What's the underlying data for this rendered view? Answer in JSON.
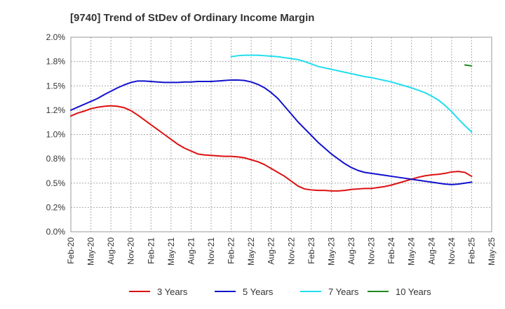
{
  "chart_data": {
    "type": "line",
    "title": "[9740]  Trend of StDev of Ordinary Income Margin",
    "xlabel": "",
    "ylabel": "",
    "x_ticks": [
      "Feb-20",
      "May-20",
      "Aug-20",
      "Nov-20",
      "Feb-21",
      "May-21",
      "Aug-21",
      "Nov-21",
      "Feb-22",
      "May-22",
      "Aug-22",
      "Nov-22",
      "Feb-23",
      "May-23",
      "Aug-23",
      "Nov-23",
      "Feb-24",
      "May-24",
      "Aug-24",
      "Nov-24",
      "Feb-25",
      "May-25"
    ],
    "y_ticks": [
      "0.0%",
      "0.2%",
      "0.5%",
      "0.8%",
      "1.0%",
      "1.2%",
      "1.5%",
      "1.8%",
      "2.0%"
    ],
    "ylim": [
      0,
      2.0
    ],
    "grid": true,
    "legend_position": "bottom",
    "series": [
      {
        "name": "3 Years",
        "color": "#dd1111",
        "x": [
          "Feb-20",
          "Mar-20",
          "Apr-20",
          "May-20",
          "Jun-20",
          "Jul-20",
          "Aug-20",
          "Sep-20",
          "Oct-20",
          "Nov-20",
          "Dec-20",
          "Jan-21",
          "Feb-21",
          "Mar-21",
          "Apr-21",
          "May-21",
          "Jun-21",
          "Jul-21",
          "Aug-21",
          "Sep-21",
          "Oct-21",
          "Nov-21",
          "Dec-21",
          "Jan-22",
          "Feb-22",
          "Mar-22",
          "Apr-22",
          "May-22",
          "Jun-22",
          "Jul-22",
          "Aug-22",
          "Sep-22",
          "Oct-22",
          "Nov-22",
          "Dec-22",
          "Jan-23",
          "Feb-23",
          "Mar-23",
          "Apr-23",
          "May-23",
          "Jun-23",
          "Jul-23",
          "Aug-23",
          "Sep-23",
          "Oct-23",
          "Nov-23",
          "Dec-23",
          "Jan-24",
          "Feb-24",
          "Mar-24",
          "Apr-24",
          "May-24",
          "Jun-24",
          "Jul-24",
          "Aug-24",
          "Sep-24",
          "Oct-24",
          "Nov-24",
          "Dec-24",
          "Jan-25",
          "Feb-25"
        ],
        "values": [
          1.19,
          1.22,
          1.24,
          1.265,
          1.28,
          1.29,
          1.295,
          1.29,
          1.275,
          1.245,
          1.2,
          1.15,
          1.1,
          1.05,
          1.0,
          0.95,
          0.9,
          0.86,
          0.83,
          0.8,
          0.79,
          0.785,
          0.78,
          0.775,
          0.775,
          0.77,
          0.76,
          0.74,
          0.72,
          0.69,
          0.65,
          0.61,
          0.57,
          0.52,
          0.47,
          0.44,
          0.43,
          0.425,
          0.425,
          0.42,
          0.42,
          0.425,
          0.435,
          0.44,
          0.445,
          0.445,
          0.455,
          0.465,
          0.48,
          0.5,
          0.52,
          0.54,
          0.56,
          0.575,
          0.585,
          0.59,
          0.6,
          0.615,
          0.62,
          0.61,
          0.57
        ]
      },
      {
        "name": "5 Years",
        "color": "#1111cc",
        "x": [
          "Feb-20",
          "Mar-20",
          "Apr-20",
          "May-20",
          "Jun-20",
          "Jul-20",
          "Aug-20",
          "Sep-20",
          "Oct-20",
          "Nov-20",
          "Dec-20",
          "Jan-21",
          "Feb-21",
          "Mar-21",
          "Apr-21",
          "May-21",
          "Jun-21",
          "Jul-21",
          "Aug-21",
          "Sep-21",
          "Oct-21",
          "Nov-21",
          "Dec-21",
          "Jan-22",
          "Feb-22",
          "Mar-22",
          "Apr-22",
          "May-22",
          "Jun-22",
          "Jul-22",
          "Aug-22",
          "Sep-22",
          "Oct-22",
          "Nov-22",
          "Dec-22",
          "Jan-23",
          "Feb-23",
          "Mar-23",
          "Apr-23",
          "May-23",
          "Jun-23",
          "Jul-23",
          "Aug-23",
          "Sep-23",
          "Oct-23",
          "Nov-23",
          "Dec-23",
          "Jan-24",
          "Feb-24",
          "Mar-24",
          "Apr-24",
          "May-24",
          "Jun-24",
          "Jul-24",
          "Aug-24",
          "Sep-24",
          "Oct-24",
          "Nov-24",
          "Dec-24",
          "Jan-25",
          "Feb-25"
        ],
        "values": [
          1.25,
          1.28,
          1.31,
          1.34,
          1.37,
          1.41,
          1.445,
          1.48,
          1.51,
          1.535,
          1.55,
          1.55,
          1.545,
          1.54,
          1.535,
          1.535,
          1.535,
          1.54,
          1.54,
          1.545,
          1.545,
          1.545,
          1.55,
          1.555,
          1.56,
          1.56,
          1.555,
          1.54,
          1.515,
          1.48,
          1.43,
          1.37,
          1.29,
          1.21,
          1.13,
          1.06,
          0.99,
          0.92,
          0.86,
          0.8,
          0.75,
          0.7,
          0.66,
          0.63,
          0.61,
          0.6,
          0.59,
          0.58,
          0.57,
          0.56,
          0.55,
          0.54,
          0.53,
          0.52,
          0.51,
          0.5,
          0.49,
          0.485,
          0.49,
          0.5,
          0.51
        ]
      },
      {
        "name": "7 Years",
        "color": "#22ddee",
        "x": [
          "Feb-22",
          "Mar-22",
          "Apr-22",
          "May-22",
          "Jun-22",
          "Jul-22",
          "Aug-22",
          "Sep-22",
          "Oct-22",
          "Nov-22",
          "Dec-22",
          "Jan-23",
          "Feb-23",
          "Mar-23",
          "Apr-23",
          "May-23",
          "Jun-23",
          "Jul-23",
          "Aug-23",
          "Sep-23",
          "Oct-23",
          "Nov-23",
          "Dec-23",
          "Jan-24",
          "Feb-24",
          "Mar-24",
          "Apr-24",
          "May-24",
          "Jun-24",
          "Jul-24",
          "Aug-24",
          "Sep-24",
          "Oct-24",
          "Nov-24",
          "Dec-24",
          "Jan-25",
          "Feb-25"
        ],
        "values": [
          1.8,
          1.81,
          1.815,
          1.815,
          1.815,
          1.81,
          1.805,
          1.8,
          1.79,
          1.78,
          1.77,
          1.75,
          1.725,
          1.7,
          1.685,
          1.67,
          1.655,
          1.64,
          1.625,
          1.61,
          1.595,
          1.585,
          1.57,
          1.555,
          1.54,
          1.52,
          1.5,
          1.48,
          1.455,
          1.43,
          1.395,
          1.355,
          1.3,
          1.235,
          1.16,
          1.09,
          1.025
        ]
      },
      {
        "name": "10 Years",
        "color": "#228822",
        "x": [
          "Jan-25",
          "Feb-25"
        ],
        "values": [
          1.715,
          1.705
        ]
      }
    ]
  }
}
